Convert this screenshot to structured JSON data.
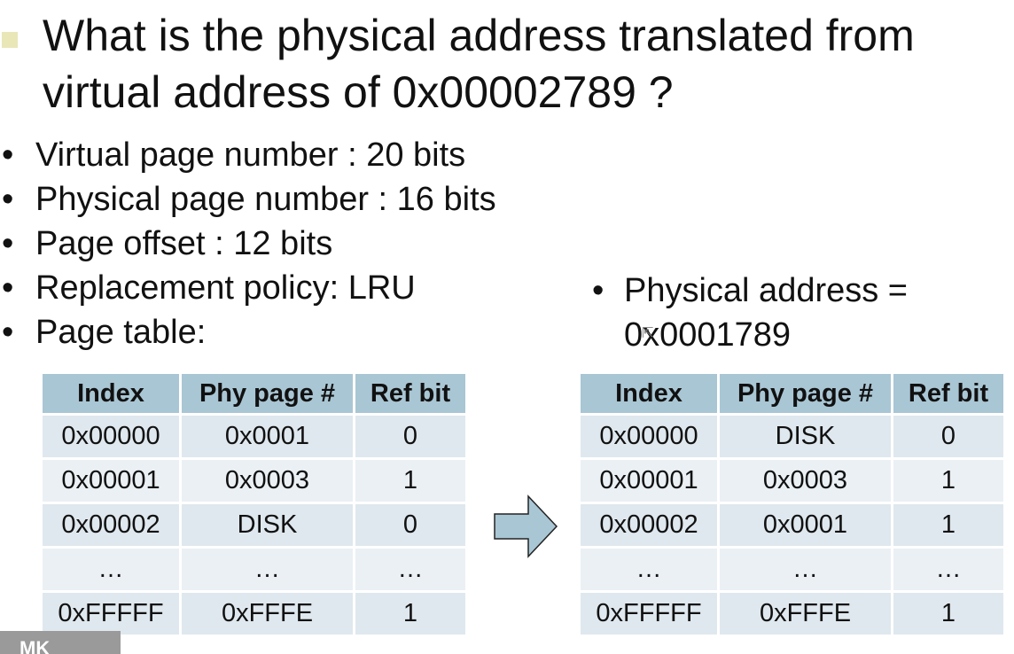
{
  "title": "What is the physical address translated from virtual address of 0x00002789 ?",
  "bullets": [
    "Virtual page number : 20 bits",
    "Physical page number : 16 bits",
    "Page offset : 12 bits",
    "Replacement policy: LRU",
    "Page table:"
  ],
  "answer": {
    "label": "Physical address =",
    "value": "0x0001789"
  },
  "table_before": {
    "headers": [
      "Index",
      "Phy page #",
      "Ref bit"
    ],
    "rows": [
      [
        "0x00000",
        "0x0001",
        "0"
      ],
      [
        "0x00001",
        "0x0003",
        "1"
      ],
      [
        "0x00002",
        "DISK",
        "0"
      ],
      [
        "…",
        "…",
        "…"
      ],
      [
        "0xFFFFF",
        "0xFFFE",
        "1"
      ]
    ]
  },
  "table_after": {
    "headers": [
      "Index",
      "Phy page #",
      "Ref bit"
    ],
    "rows": [
      [
        "0x00000",
        "DISK",
        "0"
      ],
      [
        "0x00001",
        "0x0003",
        "1"
      ],
      [
        "0x00002",
        "0x0001",
        "1"
      ],
      [
        "…",
        "…",
        "…"
      ],
      [
        "0xFFFFF",
        "0xFFFE",
        "1"
      ]
    ]
  },
  "icons": {
    "arrow": "right-arrow-icon",
    "arrow_color": "#a9c6d4",
    "header_color": "#a9c6d4"
  },
  "logo_text": "MK"
}
